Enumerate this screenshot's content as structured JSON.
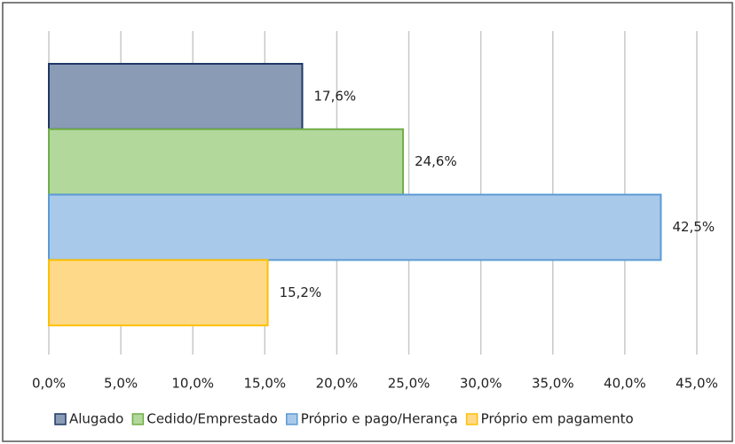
{
  "chart_data": {
    "type": "bar",
    "orientation": "horizontal",
    "categories": [
      null
    ],
    "series": [
      {
        "name": "Alugado",
        "color": "#8a9bb6",
        "border_color": "#1f3864",
        "values": [
          17.6
        ],
        "value_labels": [
          "17,6%"
        ]
      },
      {
        "name": "Cedido/Emprestado",
        "color": "#b2d89c",
        "border_color": "#70ad47",
        "values": [
          24.6
        ],
        "value_labels": [
          "24,6%"
        ]
      },
      {
        "name": "Próprio e pago/Herança",
        "color": "#a9c9ea",
        "border_color": "#5b9bd5",
        "values": [
          42.5
        ],
        "value_labels": [
          "42,5%"
        ]
      },
      {
        "name": "Próprio em pagamento",
        "color": "#ffd98a",
        "border_color": "#ffc000",
        "values": [
          15.2
        ],
        "value_labels": [
          "15,2%"
        ]
      }
    ],
    "xlim": [
      0,
      45
    ],
    "xticks": [
      {
        "value": 0,
        "label": "0,0%"
      },
      {
        "value": 5,
        "label": "5,0%"
      },
      {
        "value": 10,
        "label": "10,0%"
      },
      {
        "value": 15,
        "label": "15,0%"
      },
      {
        "value": 20,
        "label": "20,0%"
      },
      {
        "value": 25,
        "label": "25,0%"
      },
      {
        "value": 30,
        "label": "30,0%"
      },
      {
        "value": 35,
        "label": "35,0%"
      },
      {
        "value": 40,
        "label": "40,0%"
      },
      {
        "value": 45,
        "label": "45,0%"
      }
    ],
    "grid": true,
    "legend": "bottom"
  }
}
